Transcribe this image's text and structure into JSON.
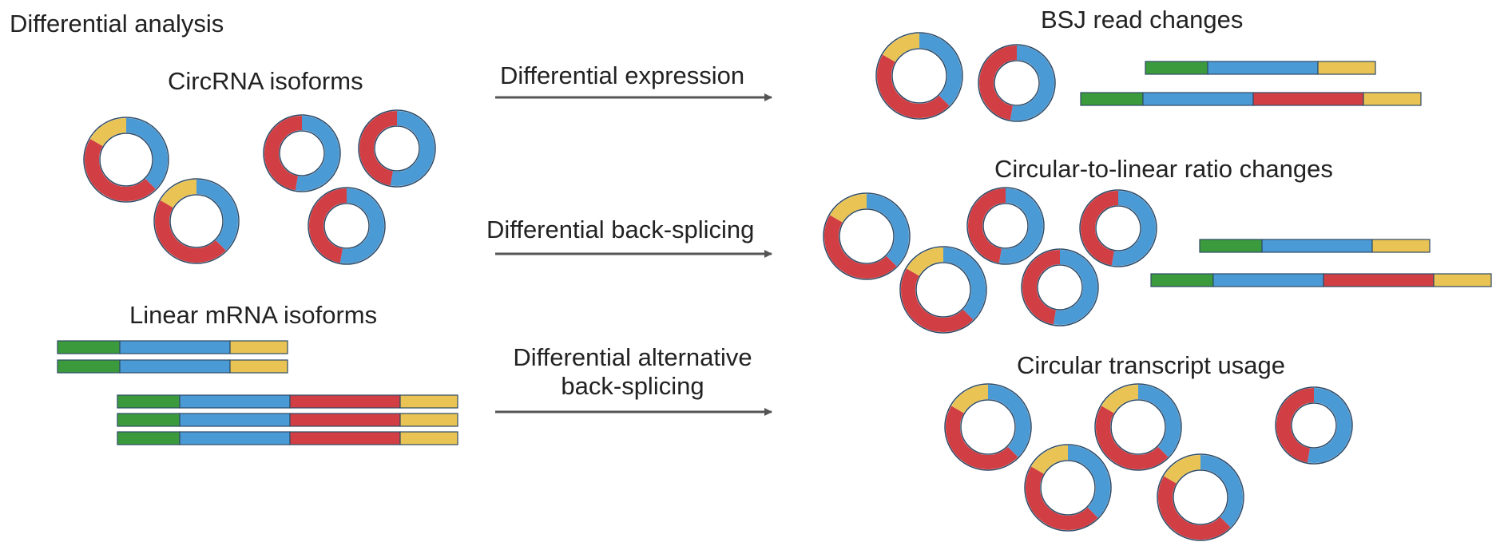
{
  "title": "Differential analysis",
  "left": {
    "circ_label": "CircRNA isoforms",
    "linear_label": "Linear mRNA isoforms"
  },
  "arrows": {
    "a1": "Differential expression",
    "a2": "Differential back-splicing",
    "a3_line1": "Differential alternative",
    "a3_line2": "back-splicing"
  },
  "right": {
    "p1": "BSJ read changes",
    "p2": "Circular-to-linear ratio changes",
    "p3": "Circular transcript usage"
  },
  "colors": {
    "green": "#3b9a3c",
    "blue": "#4a9ad6",
    "red": "#d13f44",
    "yellow": "#e9c454",
    "arrow": "#555555",
    "stroke": "#2e4a66"
  }
}
